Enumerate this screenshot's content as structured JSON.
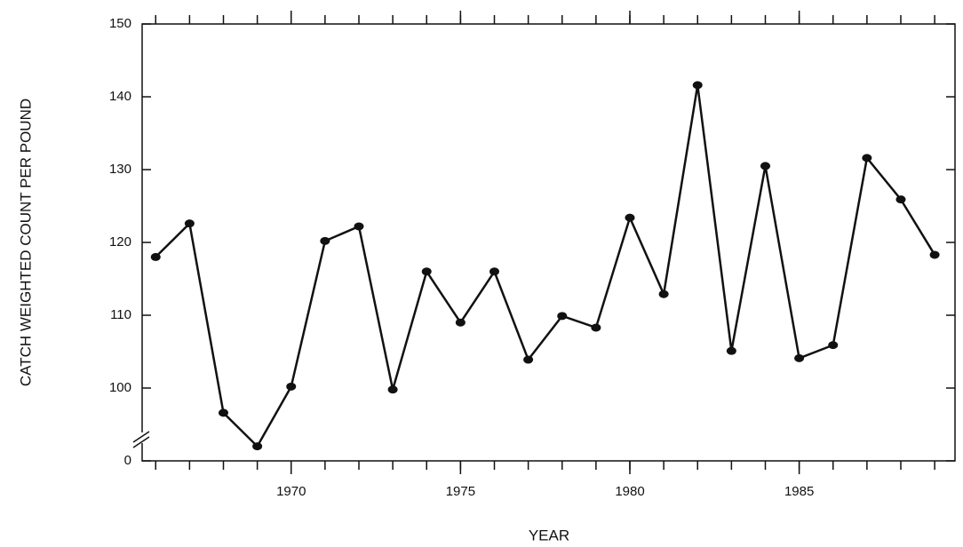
{
  "chart_data": {
    "type": "line",
    "x_label": "YEAR",
    "y_label": "CATCH WEIGHTED COUNT PER POUND",
    "x": [
      1966,
      1967,
      1968,
      1969,
      1970,
      1971,
      1972,
      1973,
      1974,
      1975,
      1976,
      1977,
      1978,
      1979,
      1980,
      1981,
      1982,
      1983,
      1984,
      1985,
      1986,
      1987,
      1988,
      1989
    ],
    "series": [
      {
        "color": "#111111",
        "values": [
          118,
          122.6,
          96.6,
          92,
          100.2,
          120.2,
          122.2,
          99.8,
          116,
          109,
          116,
          103.9,
          109.9,
          108.3,
          123.4,
          112.9,
          141.6,
          105.1,
          130.5,
          104.1,
          105.9,
          131.6,
          125.9,
          118.3
        ]
      }
    ],
    "xlim": [
      1965.6,
      1989.6
    ],
    "xticks": [
      1970,
      1975,
      1980,
      1985
    ],
    "ylim": [
      0,
      150
    ],
    "yticks": [
      0,
      100,
      110,
      120,
      130,
      140,
      150
    ],
    "axis_break": [
      0,
      90
    ],
    "grid": false
  }
}
